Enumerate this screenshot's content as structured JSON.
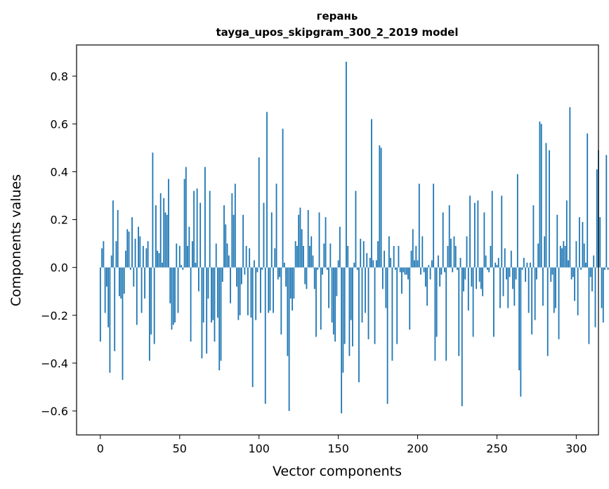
{
  "chart_data": {
    "type": "bar",
    "title": "герань",
    "subtitle": "tayga_upos_skipgram_300_2_2019 model",
    "xlabel": "Vector components",
    "ylabel": "Components values",
    "xlim": [
      -15,
      314
    ],
    "ylim": [
      -0.7,
      0.93
    ],
    "xticks": [
      0,
      50,
      100,
      150,
      200,
      250,
      300
    ],
    "xtick_labels": [
      "0",
      "50",
      "100",
      "150",
      "200",
      "250",
      "300"
    ],
    "yticks": [
      -0.6,
      -0.4,
      -0.2,
      0.0,
      0.2,
      0.4,
      0.6,
      0.8
    ],
    "ytick_labels": [
      "−0.6",
      "−0.4",
      "−0.2",
      "0.0",
      "0.2",
      "0.4",
      "0.6",
      "0.8"
    ],
    "grid": false,
    "color": "#1f77b4",
    "values": [
      -0.31,
      0.08,
      0.11,
      -0.19,
      -0.08,
      -0.25,
      -0.44,
      0.05,
      0.28,
      -0.35,
      0.11,
      0.24,
      -0.12,
      -0.13,
      -0.47,
      -0.11,
      0.07,
      0.16,
      0.15,
      -0.01,
      0.21,
      -0.08,
      0.12,
      -0.24,
      0.17,
      0.13,
      -0.19,
      0.09,
      -0.13,
      0.08,
      0.11,
      -0.39,
      -0.28,
      0.48,
      -0.32,
      0.26,
      0.07,
      0.06,
      0.31,
      0.02,
      0.29,
      0.23,
      0.22,
      0.37,
      -0.15,
      -0.26,
      -0.24,
      -0.23,
      0.1,
      -0.19,
      0.09,
      0.01,
      -0.01,
      0.37,
      0.42,
      0.09,
      0.17,
      -0.31,
      0.11,
      0.32,
      0.02,
      0.33,
      -0.1,
      0.27,
      -0.38,
      -0.23,
      0.42,
      -0.36,
      -0.13,
      0.32,
      -0.23,
      -0.22,
      -0.31,
      0.1,
      -0.21,
      -0.43,
      -0.39,
      -0.06,
      0.26,
      0.18,
      0.1,
      0.05,
      -0.15,
      0.31,
      0.22,
      0.35,
      -0.08,
      -0.22,
      -0.2,
      -0.07,
      0.22,
      -0.03,
      0.09,
      -0.2,
      0.08,
      -0.21,
      -0.5,
      0.03,
      -0.22,
      -0.02,
      0.46,
      -0.19,
      -0.01,
      0.27,
      -0.57,
      0.65,
      -0.19,
      -0.18,
      0.23,
      -0.19,
      0.08,
      0.35,
      -0.05,
      -0.04,
      -0.28,
      0.58,
      0.02,
      -0.08,
      -0.37,
      -0.6,
      -0.13,
      -0.18,
      -0.13,
      0.11,
      0.09,
      0.22,
      0.25,
      0.16,
      0.09,
      -0.07,
      -0.09,
      0.24,
      0.09,
      0.13,
      0.05,
      -0.09,
      -0.29,
      -0.01,
      0.23,
      -0.26,
      -0.03,
      0.1,
      0.21,
      -0.01,
      -0.17,
      0.1,
      -0.23,
      -0.28,
      -0.31,
      -0.12,
      0.03,
      0.17,
      -0.61,
      -0.44,
      -0.32,
      0.86,
      0.09,
      -0.37,
      -0.22,
      -0.33,
      0.02,
      0.32,
      -0.01,
      -0.48,
      0.12,
      -0.23,
      0.11,
      -0.19,
      0.06,
      -0.3,
      0.04,
      0.62,
      0.03,
      -0.32,
      0.03,
      0.11,
      0.51,
      0.5,
      -0.09,
      0.07,
      -0.17,
      -0.57,
      0.13,
      0.04,
      -0.39,
      0.09,
      -0.01,
      -0.32,
      0.09,
      -0.02,
      -0.11,
      -0.02,
      -0.03,
      -0.03,
      -0.05,
      -0.26,
      0.07,
      0.16,
      0.03,
      0.09,
      0.03,
      0.35,
      -0.03,
      0.13,
      -0.02,
      -0.08,
      -0.16,
      0.01,
      -0.05,
      0.03,
      0.35,
      -0.39,
      -0.29,
      0.05,
      -0.08,
      -0.03,
      0.23,
      -0.02,
      -0.39,
      0.09,
      0.26,
      0.12,
      -0.02,
      0.13,
      0.09,
      -0.01,
      -0.37,
      0.04,
      -0.58,
      -0.1,
      -0.05,
      0.13,
      -0.18,
      0.3,
      -0.08,
      -0.29,
      0.27,
      -0.09,
      0.28,
      -0.06,
      -0.09,
      -0.12,
      0.23,
      0.05,
      -0.01,
      -0.02,
      0.09,
      0.32,
      -0.29,
      0.02,
      0.01,
      0.04,
      -0.17,
      0.3,
      -0.12,
      0.08,
      -0.05,
      -0.17,
      -0.04,
      0.07,
      -0.09,
      -0.16,
      -0.05,
      0.39,
      -0.43,
      -0.54,
      -0.01,
      0.04,
      -0.06,
      0.02,
      -0.19,
      0.02,
      -0.28,
      0.26,
      -0.22,
      -0.05,
      0.1,
      0.61,
      0.6,
      -0.16,
      0.13,
      0.52,
      -0.37,
      0.49,
      -0.06,
      -0.03,
      -0.19,
      -0.17,
      0.22,
      -0.3,
      0.09,
      0.08,
      0.11,
      0.09,
      0.28,
      0.03,
      0.67,
      -0.05,
      -0.04,
      -0.14,
      0.11,
      -0.2,
      0.21,
      -0.01,
      0.19,
      0.1,
      0.02,
      0.56,
      -0.32,
      -0.04,
      -0.1,
      0.05,
      -0.25,
      0.41,
      0.49,
      0.21,
      -0.17,
      -0.23,
      -0.01,
      0.47,
      -0.01
    ]
  }
}
